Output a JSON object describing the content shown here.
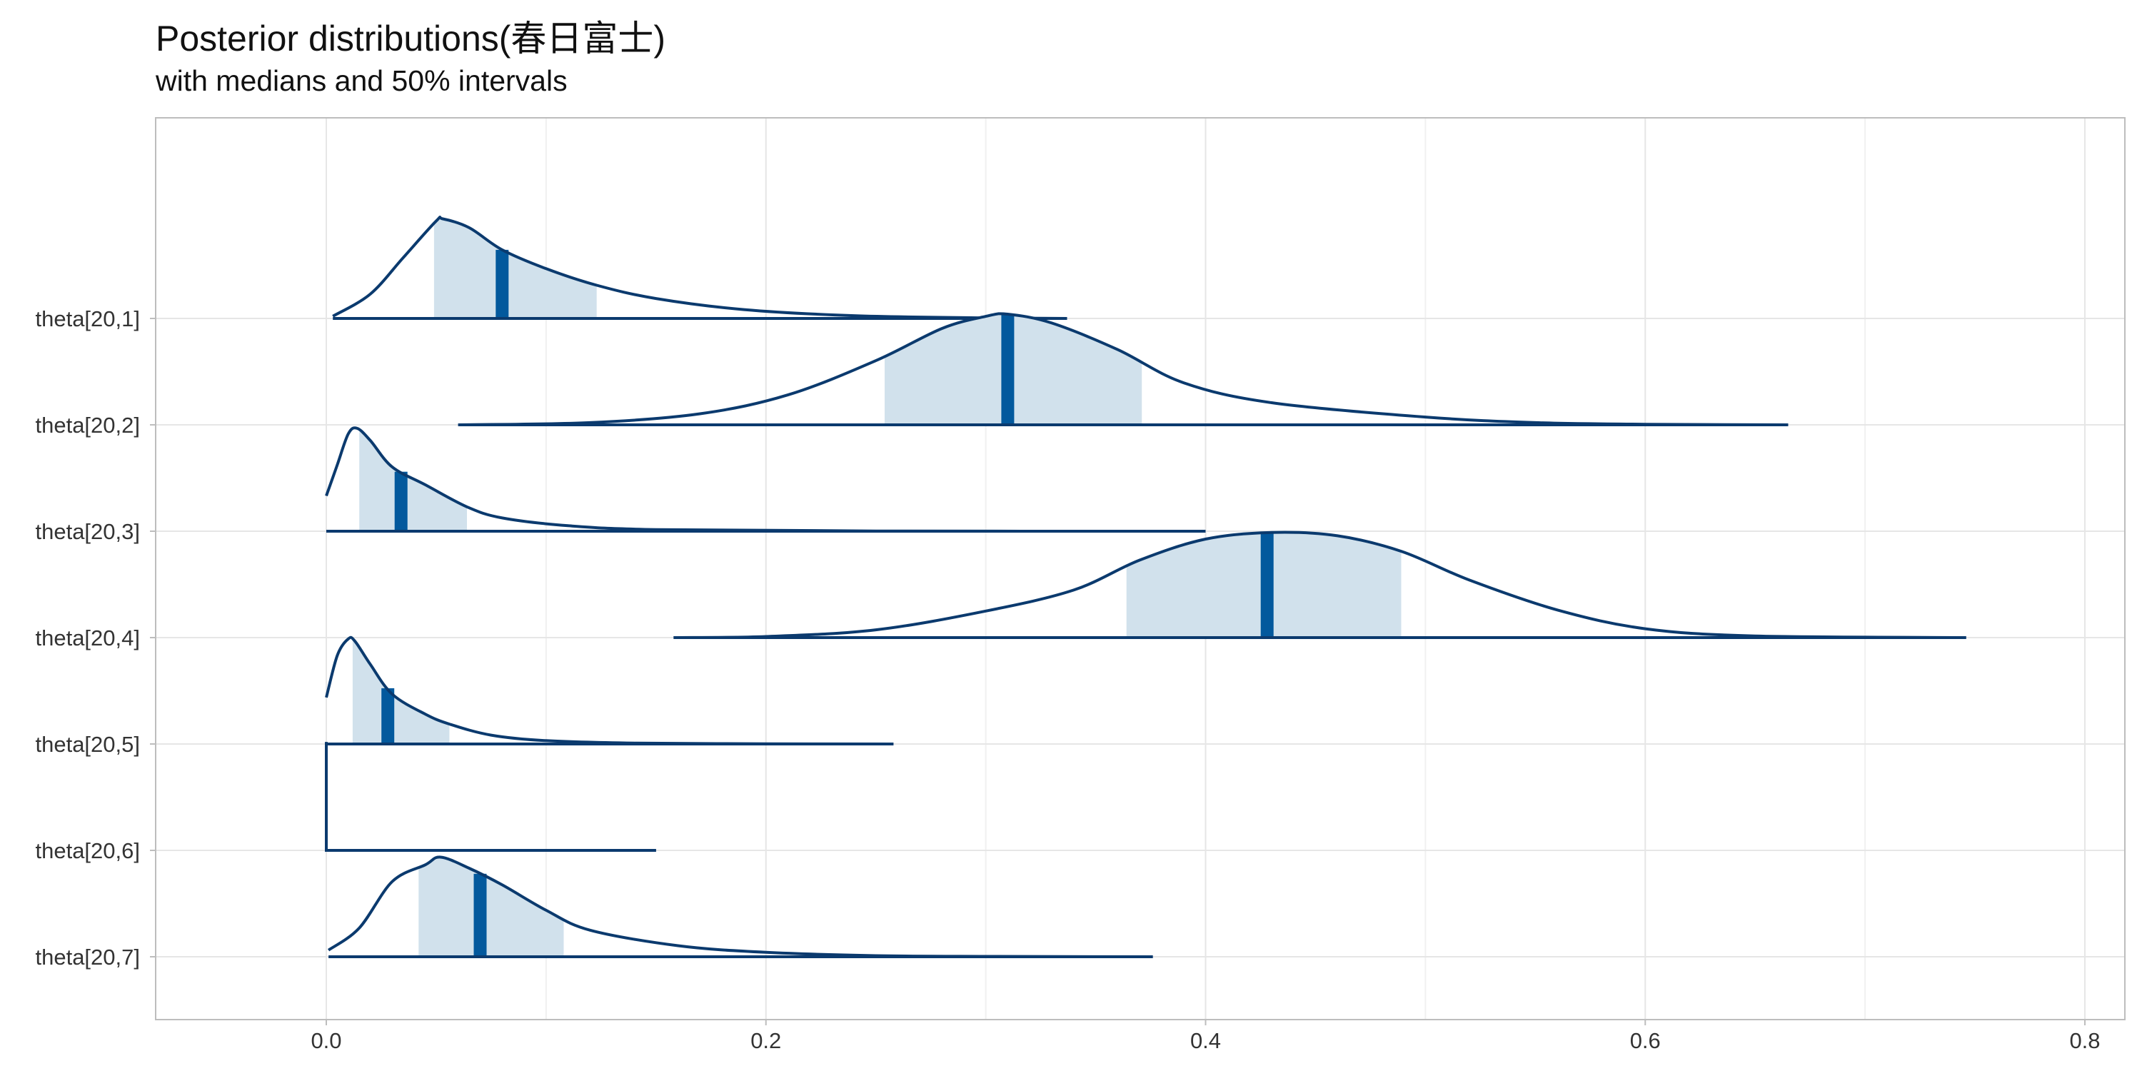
{
  "chart_data": {
    "type": "ridgeline",
    "title": "Posterior distributions(春日富士)",
    "subtitle": "with medians and 50% intervals",
    "xlabel": "",
    "ylabel": "",
    "xlim": [
      -0.08,
      0.82
    ],
    "x_ticks": [
      0.0,
      0.2,
      0.4,
      0.6,
      0.8
    ],
    "x_tick_labels": [
      "0.0",
      "0.2",
      "0.4",
      "0.6",
      "0.8"
    ],
    "grid": true,
    "colors": {
      "line": "#0b3a6e",
      "fill": "#d1e1ec",
      "median": "#03599d",
      "grid": "#e6e6e6",
      "border": "#bdbdbd"
    },
    "series": [
      {
        "name": "theta[20,1]",
        "min": 0.003,
        "max": 0.337,
        "interval": [
          0.049,
          0.123
        ],
        "median": 0.08,
        "density": [
          [
            0.003,
            0.02
          ],
          [
            0.02,
            0.22
          ],
          [
            0.035,
            0.55
          ],
          [
            0.05,
            0.88
          ],
          [
            0.053,
            0.9
          ],
          [
            0.065,
            0.82
          ],
          [
            0.08,
            0.62
          ],
          [
            0.1,
            0.45
          ],
          [
            0.123,
            0.3
          ],
          [
            0.15,
            0.18
          ],
          [
            0.19,
            0.08
          ],
          [
            0.24,
            0.025
          ],
          [
            0.3,
            0.005
          ],
          [
            0.337,
            0.0
          ]
        ]
      },
      {
        "name": "theta[20,2]",
        "min": 0.06,
        "max": 0.665,
        "interval": [
          0.254,
          0.371
        ],
        "median": 0.31,
        "density": [
          [
            0.06,
            0.0
          ],
          [
            0.12,
            0.02
          ],
          [
            0.17,
            0.1
          ],
          [
            0.21,
            0.27
          ],
          [
            0.25,
            0.58
          ],
          [
            0.28,
            0.87
          ],
          [
            0.3,
            0.98
          ],
          [
            0.31,
            1.0
          ],
          [
            0.33,
            0.92
          ],
          [
            0.36,
            0.68
          ],
          [
            0.39,
            0.38
          ],
          [
            0.43,
            0.2
          ],
          [
            0.5,
            0.07
          ],
          [
            0.55,
            0.02
          ],
          [
            0.6,
            0.005
          ],
          [
            0.665,
            0.0
          ]
        ]
      },
      {
        "name": "theta[20,3]",
        "min": 0.0,
        "max": 0.4,
        "interval": [
          0.015,
          0.064
        ],
        "median": 0.034,
        "density": [
          [
            0.0,
            0.32
          ],
          [
            0.005,
            0.6
          ],
          [
            0.01,
            0.88
          ],
          [
            0.014,
            0.93
          ],
          [
            0.02,
            0.82
          ],
          [
            0.03,
            0.58
          ],
          [
            0.045,
            0.42
          ],
          [
            0.064,
            0.22
          ],
          [
            0.08,
            0.12
          ],
          [
            0.11,
            0.05
          ],
          [
            0.15,
            0.015
          ],
          [
            0.25,
            0.002
          ],
          [
            0.4,
            0.0
          ]
        ]
      },
      {
        "name": "theta[20,4]",
        "min": 0.158,
        "max": 0.746,
        "interval": [
          0.364,
          0.489
        ],
        "median": 0.428,
        "density": [
          [
            0.158,
            0.0
          ],
          [
            0.2,
            0.01
          ],
          [
            0.25,
            0.07
          ],
          [
            0.3,
            0.24
          ],
          [
            0.34,
            0.43
          ],
          [
            0.37,
            0.7
          ],
          [
            0.4,
            0.89
          ],
          [
            0.43,
            0.95
          ],
          [
            0.46,
            0.92
          ],
          [
            0.489,
            0.78
          ],
          [
            0.52,
            0.52
          ],
          [
            0.56,
            0.25
          ],
          [
            0.6,
            0.08
          ],
          [
            0.65,
            0.015
          ],
          [
            0.746,
            0.0
          ]
        ]
      },
      {
        "name": "theta[20,5]",
        "min": 0.0,
        "max": 0.258,
        "interval": [
          0.012,
          0.056
        ],
        "median": 0.028,
        "density": [
          [
            0.0,
            0.42
          ],
          [
            0.005,
            0.8
          ],
          [
            0.01,
            0.95
          ],
          [
            0.013,
            0.93
          ],
          [
            0.02,
            0.72
          ],
          [
            0.03,
            0.45
          ],
          [
            0.045,
            0.27
          ],
          [
            0.056,
            0.18
          ],
          [
            0.075,
            0.08
          ],
          [
            0.1,
            0.03
          ],
          [
            0.14,
            0.008
          ],
          [
            0.2,
            0.002
          ],
          [
            0.258,
            0.0
          ]
        ]
      },
      {
        "name": "theta[20,6]",
        "min": 0.0,
        "max": 0.15,
        "interval": [
          0.0,
          0.0
        ],
        "median": 0.0,
        "density": [
          [
            0.0,
            0.98
          ],
          [
            0.0002,
            0.0
          ],
          [
            0.15,
            0.0
          ]
        ]
      },
      {
        "name": "theta[20,7]",
        "min": 0.001,
        "max": 0.376,
        "interval": [
          0.042,
          0.108
        ],
        "median": 0.07,
        "density": [
          [
            0.001,
            0.06
          ],
          [
            0.015,
            0.26
          ],
          [
            0.03,
            0.68
          ],
          [
            0.045,
            0.83
          ],
          [
            0.052,
            0.9
          ],
          [
            0.065,
            0.8
          ],
          [
            0.08,
            0.65
          ],
          [
            0.1,
            0.42
          ],
          [
            0.12,
            0.24
          ],
          [
            0.16,
            0.1
          ],
          [
            0.2,
            0.04
          ],
          [
            0.25,
            0.01
          ],
          [
            0.3,
            0.003
          ],
          [
            0.376,
            0.0
          ]
        ]
      }
    ]
  }
}
